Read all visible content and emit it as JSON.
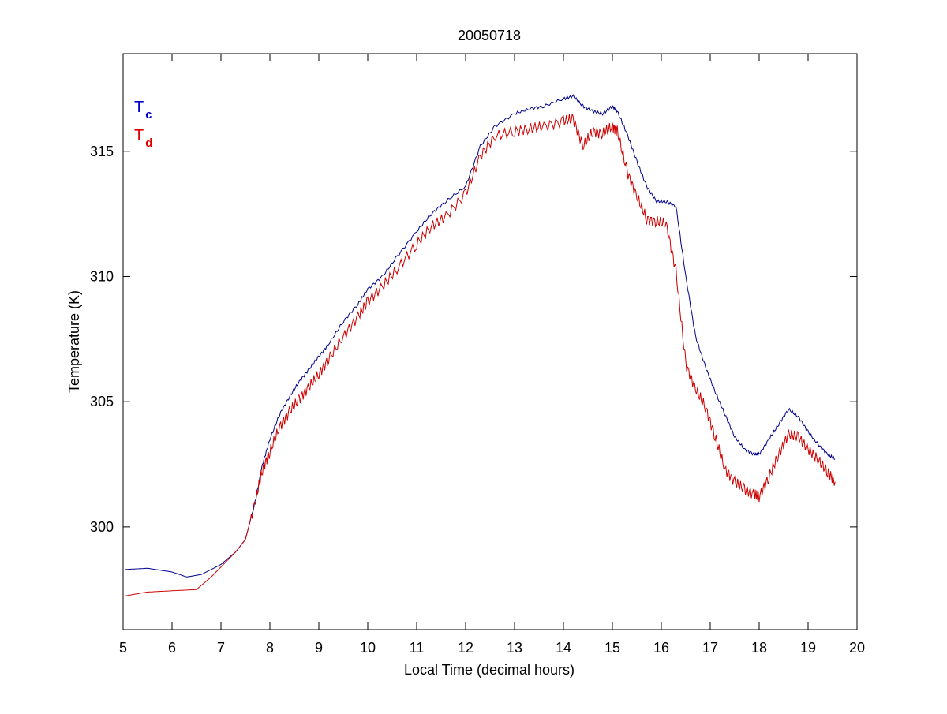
{
  "chart_data": {
    "type": "line",
    "title": "20050718",
    "xlabel": "Local Time (decimal hours)",
    "ylabel": "Temperature (K)",
    "xlim": [
      5,
      20
    ],
    "ylim": [
      295.9,
      318.9
    ],
    "xticks": [
      5,
      6,
      7,
      8,
      9,
      10,
      11,
      12,
      13,
      14,
      15,
      16,
      17,
      18,
      19,
      20
    ],
    "yticks": [
      300,
      305,
      310,
      315
    ],
    "grid": false,
    "legend": {
      "placement": "top-left",
      "entries": [
        {
          "base": "T",
          "sub": "c",
          "color": "#0000cc"
        },
        {
          "base": "T",
          "sub": "d",
          "color": "#dd0000"
        }
      ]
    },
    "series": [
      {
        "color": "#00008b",
        "x": [
          5.05,
          5.5,
          6.0,
          6.3,
          6.6,
          7.0,
          7.3,
          7.5,
          7.7,
          7.85,
          8.0,
          8.2,
          8.4,
          8.6,
          8.8,
          9.0,
          9.2,
          9.5,
          9.8,
          10.0,
          10.3,
          10.6,
          11.0,
          11.3,
          11.6,
          12.0,
          12.3,
          12.6,
          13.0,
          13.3,
          13.6,
          14.0,
          14.2,
          14.4,
          14.6,
          14.8,
          15.0,
          15.1,
          15.3,
          15.5,
          15.7,
          15.9,
          16.1,
          16.3,
          16.5,
          16.7,
          16.9,
          17.1,
          17.3,
          17.5,
          17.7,
          17.9,
          18.0,
          18.2,
          18.4,
          18.6,
          18.8,
          19.0,
          19.2,
          19.4,
          19.55
        ],
        "y": [
          298.3,
          298.35,
          298.2,
          298.0,
          298.1,
          298.5,
          299.0,
          299.5,
          301.0,
          302.5,
          303.5,
          304.5,
          305.2,
          305.8,
          306.3,
          306.8,
          307.3,
          308.2,
          308.9,
          309.5,
          310.0,
          310.8,
          311.8,
          312.5,
          313.0,
          313.6,
          315.2,
          316.0,
          316.5,
          316.7,
          316.8,
          317.1,
          317.2,
          316.8,
          316.6,
          316.5,
          316.8,
          316.6,
          315.7,
          314.6,
          313.6,
          313.0,
          313.0,
          312.8,
          310.0,
          307.6,
          306.4,
          305.4,
          304.5,
          303.6,
          303.1,
          302.9,
          302.9,
          303.5,
          304.1,
          304.7,
          304.4,
          303.8,
          303.3,
          302.9,
          302.7
        ]
      },
      {
        "color": "#cc0000",
        "x": [
          5.05,
          5.5,
          6.0,
          6.5,
          6.8,
          7.0,
          7.3,
          7.5,
          7.7,
          7.85,
          8.0,
          8.2,
          8.4,
          8.6,
          8.8,
          9.0,
          9.2,
          9.5,
          9.8,
          10.0,
          10.3,
          10.6,
          11.0,
          11.3,
          11.6,
          12.0,
          12.3,
          12.6,
          13.0,
          13.3,
          13.6,
          14.0,
          14.2,
          14.4,
          14.6,
          14.8,
          15.0,
          15.1,
          15.3,
          15.5,
          15.7,
          15.9,
          16.1,
          16.3,
          16.5,
          16.7,
          16.9,
          17.1,
          17.3,
          17.5,
          17.7,
          17.9,
          18.0,
          18.2,
          18.4,
          18.6,
          18.8,
          19.0,
          19.2,
          19.4,
          19.55
        ],
        "y": [
          297.25,
          297.4,
          297.45,
          297.5,
          298.0,
          298.4,
          299.0,
          299.5,
          301.0,
          302.3,
          303.0,
          304.0,
          304.6,
          305.1,
          305.6,
          306.1,
          306.7,
          307.6,
          308.4,
          309.0,
          309.6,
          310.3,
          311.3,
          312.0,
          312.4,
          313.3,
          314.8,
          315.6,
          315.8,
          315.9,
          316.0,
          316.2,
          316.3,
          315.2,
          315.8,
          315.7,
          316.0,
          315.8,
          314.2,
          313.2,
          312.3,
          312.2,
          312.1,
          310.2,
          306.5,
          305.5,
          304.8,
          303.6,
          302.3,
          301.8,
          301.5,
          301.3,
          301.2,
          302.0,
          302.9,
          303.7,
          303.6,
          303.1,
          302.7,
          302.2,
          301.8
        ]
      }
    ]
  }
}
